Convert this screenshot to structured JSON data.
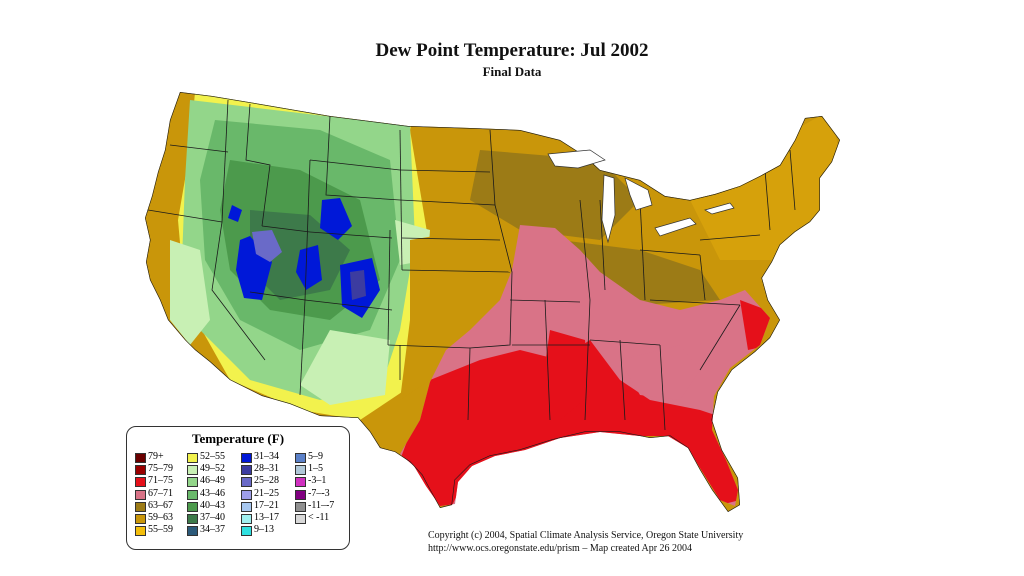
{
  "map": {
    "title": "Dew Point Temperature: Jul 2002",
    "subtitle": "Final Data"
  },
  "legend": {
    "title": "Temperature (F)",
    "columns": [
      [
        {
          "label": "79+",
          "color": "#6a0000"
        },
        {
          "label": "75–79",
          "color": "#9a0000"
        },
        {
          "label": "71–75",
          "color": "#e5101a"
        },
        {
          "label": "67–71",
          "color": "#d97387"
        },
        {
          "label": "63–67",
          "color": "#9c7b16"
        },
        {
          "label": "59–63",
          "color": "#c9960a"
        },
        {
          "label": "55–59",
          "color": "#f3be0c"
        }
      ],
      [
        {
          "label": "52–55",
          "color": "#f2f24d"
        },
        {
          "label": "49–52",
          "color": "#c8f0b4"
        },
        {
          "label": "46–49",
          "color": "#93d68a"
        },
        {
          "label": "43–46",
          "color": "#69b86a"
        },
        {
          "label": "40–43",
          "color": "#4c9a4c"
        },
        {
          "label": "37–40",
          "color": "#3d7a4a"
        },
        {
          "label": "34–37",
          "color": "#2c5a7a"
        }
      ],
      [
        {
          "label": "31–34",
          "color": "#0018d8"
        },
        {
          "label": "28–31",
          "color": "#3c3ca0"
        },
        {
          "label": "25–28",
          "color": "#6a6ac8"
        },
        {
          "label": "21–25",
          "color": "#9e9ee8"
        },
        {
          "label": "17–21",
          "color": "#a8c8f0"
        },
        {
          "label": "13–17",
          "color": "#a0f0f0"
        },
        {
          "label": "9–13",
          "color": "#30e0e0"
        }
      ],
      [
        {
          "label": "5–9",
          "color": "#5a80c8"
        },
        {
          "label": "1–5",
          "color": "#b0c8d8"
        },
        {
          "label": "-3–1",
          "color": "#d030c0"
        },
        {
          "label": "-7–-3",
          "color": "#800080"
        },
        {
          "label": "-11–-7",
          "color": "#909090"
        },
        {
          "label": "< -11",
          "color": "#d8d8d8"
        }
      ]
    ]
  },
  "credits": {
    "line1": "Copyright (c) 2004, Spatial Climate Analysis Service, Oregon State University",
    "line2": "http://www.ocs.oregonstate.edu/prism   –   Map created Apr 26 2004"
  }
}
